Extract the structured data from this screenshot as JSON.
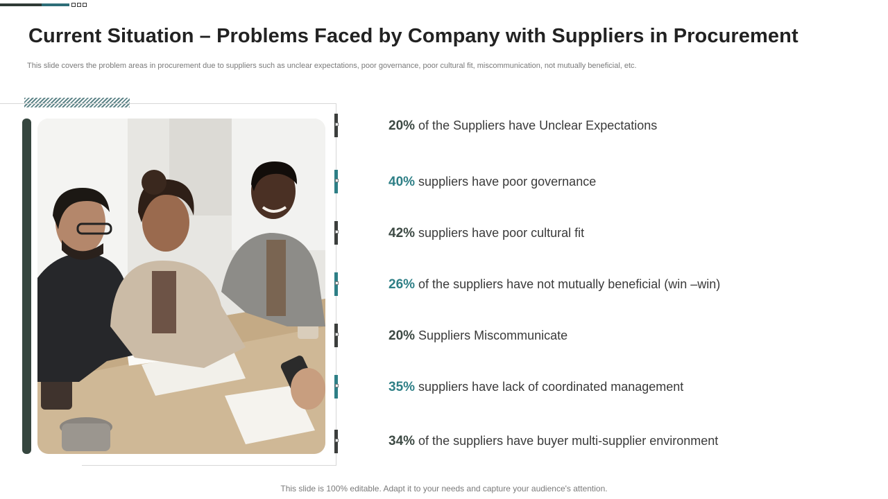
{
  "slide": {
    "title": "Current Situation – Problems Faced by Company with Suppliers in Procurement",
    "subtitle": "This slide covers the problem areas in procurement due to suppliers such as unclear expectations, poor governance, poor cultural fit, miscommunication,  not mutually beneficial, etc.",
    "footer": "This slide is 100% editable. Adapt it to your needs and capture your audience's attention."
  },
  "colors": {
    "accent_dark": "#3d4a44",
    "accent_teal": "#2e7f86"
  },
  "photo": {
    "icon": "team-meeting-photo"
  },
  "items": [
    {
      "pct": "20%",
      "text": "of the Suppliers have Unclear Expectations",
      "color": "dark"
    },
    {
      "pct": "40%",
      "text": "suppliers have poor governance",
      "color": "teal"
    },
    {
      "pct": "42%",
      "text": "suppliers have poor cultural fit",
      "color": "dark"
    },
    {
      "pct": "26%",
      "text": "of the suppliers have not mutually beneficial (win –win)",
      "color": "teal"
    },
    {
      "pct": "20%",
      "text": "Suppliers Miscommunicate",
      "color": "dark"
    },
    {
      "pct": "35%",
      "text": "suppliers have lack of coordinated management",
      "color": "teal"
    },
    {
      "pct": "34%",
      "text": "of the suppliers have buyer multi-supplier environment",
      "color": "dark"
    }
  ]
}
